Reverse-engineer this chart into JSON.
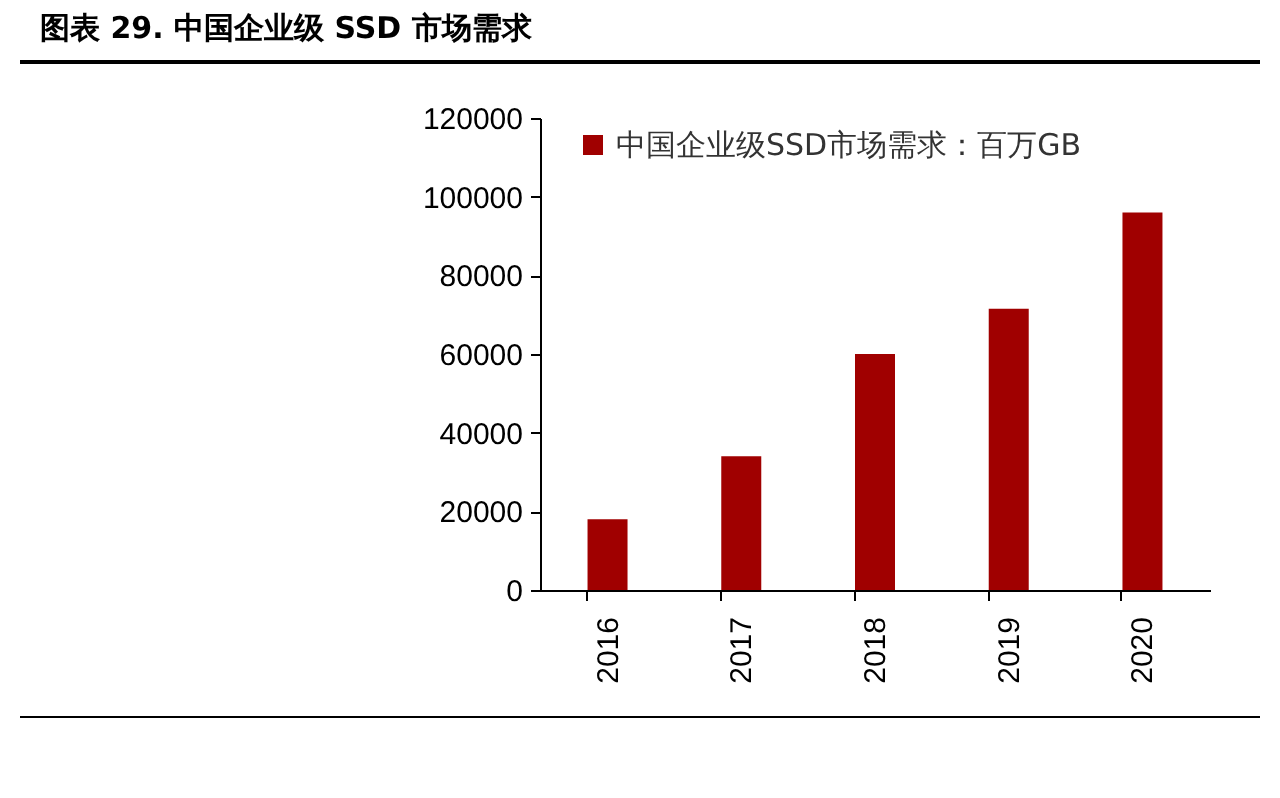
{
  "chart_data": {
    "type": "bar",
    "title": "图表 29. 中国企业级 SSD 市场需求",
    "categories": [
      "2016",
      "2017",
      "2018",
      "2019",
      "2020"
    ],
    "series": [
      {
        "name": "中国企业级SSD市场需求：百万GB",
        "color": "#a00000",
        "values": [
          18000,
          34000,
          60000,
          71500,
          96000
        ]
      }
    ],
    "ylim": [
      0,
      120000
    ],
    "yticks": [
      0,
      20000,
      40000,
      60000,
      80000,
      100000,
      120000
    ],
    "grid": false,
    "legend": "top"
  }
}
